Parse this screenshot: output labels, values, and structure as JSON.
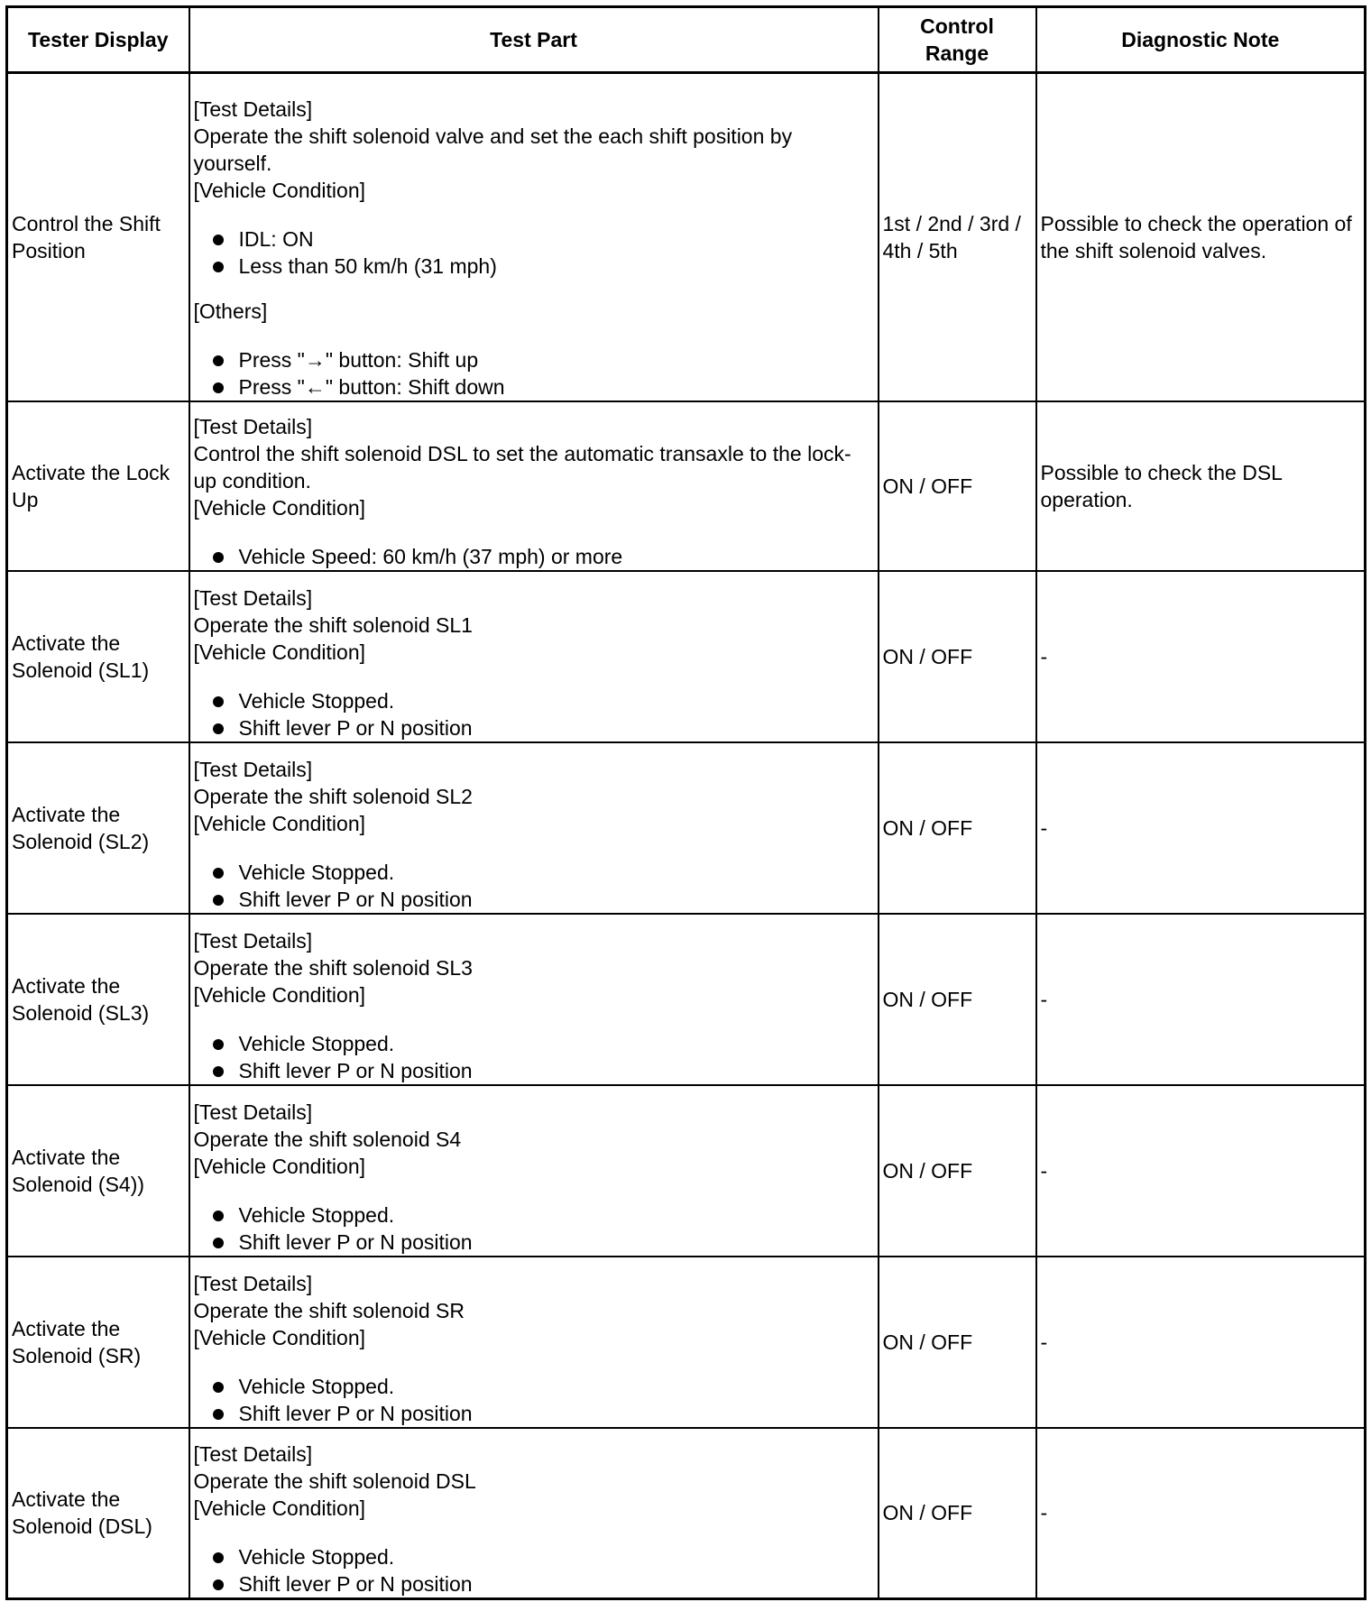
{
  "headers": [
    "Tester Display",
    "Test Part",
    "Control Range",
    "Diagnostic Note"
  ],
  "rows": [
    {
      "display": "Control the Shift Position",
      "test_details_label": "[Test Details]",
      "test_details": "Operate the shift solenoid valve and set the each shift position by yourself.",
      "condition_label": "[Vehicle Condition]",
      "conditions": [
        "IDL: ON",
        "Less than 50 km/h (31 mph)"
      ],
      "others_label": "[Others]",
      "others": [
        "Press \"→\" button: Shift up",
        "Press \"←\" button: Shift down"
      ],
      "range": "1st / 2nd / 3rd / 4th / 5th",
      "note": "Possible to check the operation of the shift solenoid valves."
    },
    {
      "display": "Activate the Lock Up",
      "test_details_label": "[Test Details]",
      "test_details": "Control the shift solenoid DSL to set the automatic transaxle to the lock-up condition.",
      "condition_label": "[Vehicle Condition]",
      "conditions": [
        "Vehicle Speed: 60 km/h (37 mph) or more"
      ],
      "range": "ON / OFF",
      "note": "Possible to check the DSL operation."
    },
    {
      "display": "Activate the Solenoid (SL1)",
      "test_details_label": "[Test Details]",
      "test_details": "Operate the shift solenoid SL1",
      "condition_label": "[Vehicle Condition]",
      "conditions": [
        "Vehicle Stopped.",
        "Shift lever P or N position"
      ],
      "range": "ON / OFF",
      "note": "-"
    },
    {
      "display": "Activate the Solenoid (SL2)",
      "test_details_label": "[Test Details]",
      "test_details": "Operate the shift solenoid SL2",
      "condition_label": "[Vehicle Condition]",
      "conditions": [
        "Vehicle Stopped.",
        "Shift lever P or N position"
      ],
      "range": "ON / OFF",
      "note": "-"
    },
    {
      "display": "Activate the Solenoid (SL3)",
      "test_details_label": "[Test Details]",
      "test_details": "Operate the shift solenoid SL3",
      "condition_label": "[Vehicle Condition]",
      "conditions": [
        "Vehicle Stopped.",
        "Shift lever P or N position"
      ],
      "range": "ON / OFF",
      "note": "-"
    },
    {
      "display": "Activate the Solenoid (S4))",
      "test_details_label": "[Test Details]",
      "test_details": "Operate the shift solenoid S4",
      "condition_label": "[Vehicle Condition]",
      "conditions": [
        "Vehicle Stopped.",
        "Shift lever P or N position"
      ],
      "range": "ON / OFF",
      "note": "-"
    },
    {
      "display": "Activate the Solenoid (SR)",
      "test_details_label": "[Test Details]",
      "test_details": "Operate the shift solenoid SR",
      "condition_label": "[Vehicle Condition]",
      "conditions": [
        "Vehicle Stopped.",
        "Shift lever P or N position"
      ],
      "range": "ON / OFF",
      "note": "-"
    },
    {
      "display": "Activate the Solenoid (DSL)",
      "test_details_label": "[Test Details]",
      "test_details": "Operate the shift solenoid DSL",
      "condition_label": "[Vehicle Condition]",
      "conditions": [
        "Vehicle Stopped.",
        "Shift lever P or N position"
      ],
      "range": "ON / OFF",
      "note": "-"
    }
  ]
}
